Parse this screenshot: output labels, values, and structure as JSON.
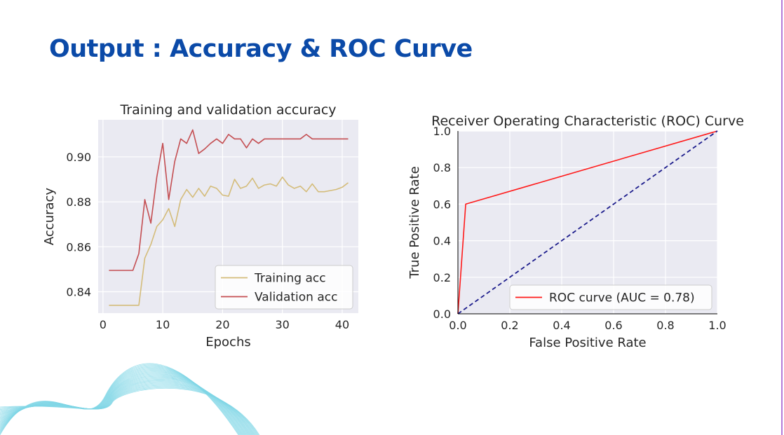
{
  "slide": {
    "title": "Output : Accuracy & ROC Curve",
    "accent_color": "#0b4aa8"
  },
  "chart_data": [
    {
      "type": "line",
      "title": "Training and validation accuracy",
      "xlabel": "Epochs",
      "ylabel": "Accuracy",
      "xlim": [
        -0.8,
        42.7
      ],
      "ylim": [
        0.8305,
        0.9165
      ],
      "xticks": [
        0,
        10,
        20,
        30,
        40
      ],
      "yticks": [
        0.84,
        0.86,
        0.88,
        0.9
      ],
      "xtick_labels": [
        "0",
        "10",
        "20",
        "30",
        "40"
      ],
      "ytick_labels": [
        "0.84",
        "0.86",
        "0.88",
        "0.90"
      ],
      "grid": true,
      "legend": "lower right",
      "x": [
        1,
        2,
        3,
        4,
        5,
        6,
        7,
        8,
        9,
        10,
        11,
        12,
        13,
        14,
        15,
        16,
        17,
        18,
        19,
        20,
        21,
        22,
        23,
        24,
        25,
        26,
        27,
        28,
        29,
        30,
        31,
        32,
        33,
        34,
        35,
        36,
        37,
        38,
        39,
        40,
        41
      ],
      "series": [
        {
          "name": "Training acc",
          "color": "#d4bc7a",
          "values": [
            0.834,
            0.834,
            0.834,
            0.834,
            0.834,
            0.834,
            0.855,
            0.861,
            0.869,
            0.872,
            0.877,
            0.869,
            0.881,
            0.8855,
            0.882,
            0.886,
            0.8825,
            0.887,
            0.886,
            0.883,
            0.8825,
            0.89,
            0.886,
            0.887,
            0.8905,
            0.886,
            0.8875,
            0.888,
            0.887,
            0.891,
            0.8875,
            0.886,
            0.887,
            0.8845,
            0.888,
            0.8845,
            0.8845,
            0.885,
            0.8855,
            0.8865,
            0.8885
          ]
        },
        {
          "name": "Validation acc",
          "color": "#c44e52",
          "values": [
            0.8495,
            0.8495,
            0.8495,
            0.8495,
            0.8495,
            0.857,
            0.881,
            0.8705,
            0.891,
            0.906,
            0.881,
            0.898,
            0.908,
            0.906,
            0.912,
            0.9015,
            0.9035,
            0.906,
            0.908,
            0.906,
            0.91,
            0.908,
            0.908,
            0.904,
            0.908,
            0.906,
            0.908,
            0.908,
            0.908,
            0.908,
            0.908,
            0.908,
            0.908,
            0.91,
            0.908,
            0.908,
            0.908,
            0.908,
            0.908,
            0.908,
            0.908
          ]
        }
      ]
    },
    {
      "type": "line",
      "title": "Receiver Operating Characteristic (ROC) Curve",
      "xlabel": "False Positive Rate",
      "ylabel": "True Positive Rate",
      "xlim": [
        0,
        1
      ],
      "ylim": [
        0,
        1
      ],
      "xticks": [
        0,
        0.2,
        0.4,
        0.6,
        0.8,
        1.0
      ],
      "yticks": [
        0,
        0.2,
        0.4,
        0.6,
        0.8,
        1.0
      ],
      "xtick_labels": [
        "0.0",
        "0.2",
        "0.4",
        "0.6",
        "0.8",
        "1.0"
      ],
      "ytick_labels": [
        "0.0",
        "0.2",
        "0.4",
        "0.6",
        "0.8",
        "1.0"
      ],
      "grid": true,
      "legend": "lower right",
      "series": [
        {
          "name": "ROC curve (AUC = 0.78)",
          "color": "#ff1a1a",
          "style": "solid",
          "x": [
            0,
            0.03,
            1.0
          ],
          "y": [
            0,
            0.6,
            1.0
          ]
        },
        {
          "color": "#1c1c8c",
          "style": "dashed",
          "x": [
            0,
            1
          ],
          "y": [
            0,
            1
          ]
        }
      ]
    }
  ]
}
